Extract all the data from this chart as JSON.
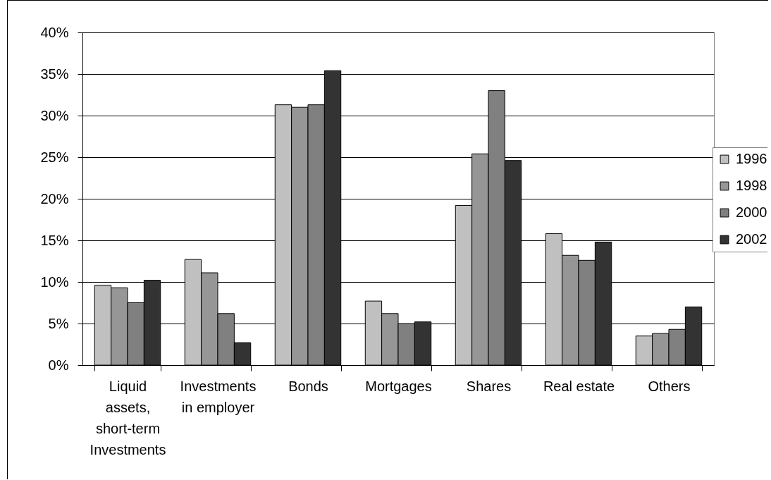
{
  "chart_data": {
    "type": "bar",
    "categories": [
      "Liquid assets, short-term Investments",
      "Investments in employer",
      "Bonds",
      "Mortgages",
      "Shares",
      "Real estate",
      "Others"
    ],
    "series": [
      {
        "name": "1996",
        "color": "#c0c0c0",
        "values": [
          9.6,
          12.7,
          31.3,
          7.7,
          19.2,
          15.8,
          3.5
        ]
      },
      {
        "name": "1998",
        "color": "#969696",
        "values": [
          9.3,
          11.1,
          31.0,
          6.2,
          25.4,
          13.2,
          3.8
        ]
      },
      {
        "name": "2000",
        "color": "#808080",
        "values": [
          7.5,
          6.2,
          31.3,
          5.0,
          33.0,
          12.6,
          4.3
        ]
      },
      {
        "name": "2002",
        "color": "#333333",
        "values": [
          10.2,
          2.7,
          35.4,
          5.2,
          24.6,
          14.8,
          7.0
        ]
      }
    ],
    "ylim": [
      0,
      40
    ],
    "yticks": [
      {
        "value": 0,
        "label": "0%"
      },
      {
        "value": 5,
        "label": "5%"
      },
      {
        "value": 10,
        "label": "10%"
      },
      {
        "value": 15,
        "label": "15%"
      },
      {
        "value": 20,
        "label": "20%"
      },
      {
        "value": 25,
        "label": "25%"
      },
      {
        "value": 30,
        "label": "30%"
      },
      {
        "value": 35,
        "label": "35%"
      },
      {
        "value": 40,
        "label": "40%"
      }
    ],
    "grid": "y",
    "legend": "right"
  }
}
